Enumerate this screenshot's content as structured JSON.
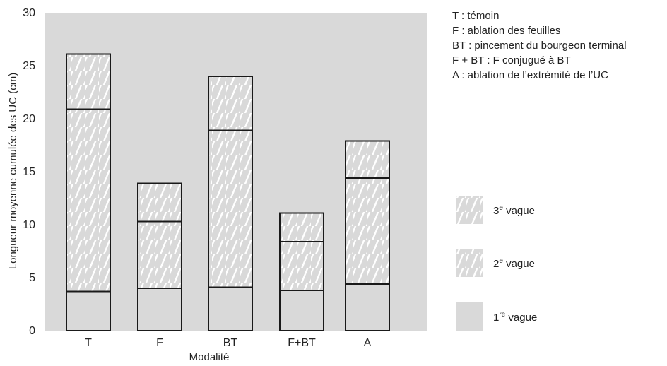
{
  "chart_data": {
    "type": "bar",
    "stacked": true,
    "categories": [
      "T",
      "F",
      "BT",
      "F+BT",
      "A"
    ],
    "series": [
      {
        "name": "1re vague",
        "values": [
          3.7,
          4.0,
          4.1,
          3.8,
          4.4
        ]
      },
      {
        "name": "2e vague",
        "values": [
          17.2,
          6.3,
          14.8,
          4.6,
          10.0
        ]
      },
      {
        "name": "3e vague",
        "values": [
          5.2,
          3.6,
          5.1,
          2.7,
          3.5
        ]
      }
    ],
    "xlabel": "Modalité",
    "ylabel": "Longueur moyenne cumulée des UC (cm)",
    "ylim": [
      0,
      30
    ],
    "yticks": [
      0,
      5,
      10,
      15,
      20,
      25,
      30
    ],
    "grid": false,
    "plot_background": "#d9d9d9",
    "bar_fill": "#d9d9d9",
    "hatch_color": "#ffffff",
    "outline_color": "#1a1a1a",
    "legend": {
      "placement": "right",
      "entries": [
        {
          "base": "3",
          "sup": "e",
          "text": " vague",
          "hatched": true
        },
        {
          "base": "2",
          "sup": "e",
          "text": " vague",
          "hatched": true
        },
        {
          "base": "1",
          "sup": "re",
          "text": " vague",
          "hatched": false
        }
      ]
    },
    "notes": [
      "T : témoin",
      "F : ablation des feuilles",
      "BT : pincement du bourgeon terminal",
      "F + BT : F conjugué à BT",
      "A : ablation de l’extrémité de l’UC"
    ]
  }
}
